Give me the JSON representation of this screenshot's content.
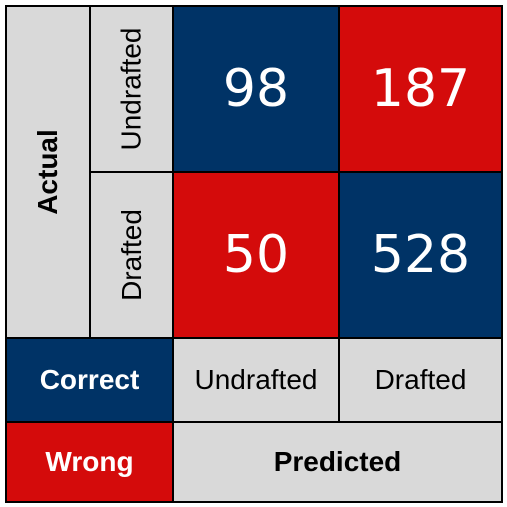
{
  "colors": {
    "correct": "#003366",
    "wrong": "#d40b0b",
    "neutral": "#d9d9d9"
  },
  "chart_data": {
    "type": "heatmap",
    "title": "",
    "xlabel": "Predicted",
    "ylabel": "Actual",
    "x_categories": [
      "Undrafted",
      "Drafted"
    ],
    "y_categories": [
      "Undrafted",
      "Drafted"
    ],
    "matrix": [
      [
        98,
        187
      ],
      [
        50,
        528
      ]
    ],
    "legend": [
      {
        "label": "Correct",
        "color": "#003366"
      },
      {
        "label": "Wrong",
        "color": "#d40b0b"
      }
    ]
  }
}
